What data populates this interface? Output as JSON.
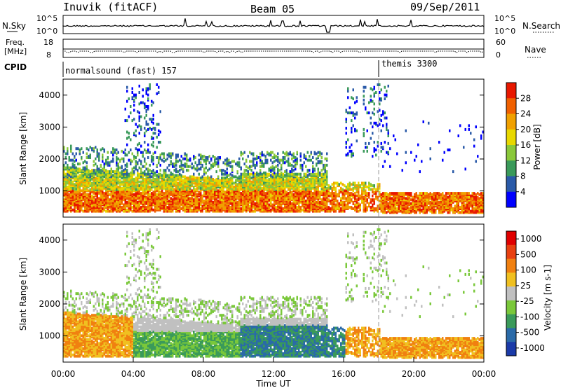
{
  "header": {
    "station": "Inuvik (fitACF)",
    "beam": "Beam 05",
    "date": "09/Sep/2011"
  },
  "sky_panel": {
    "left_label": "N.Sky",
    "right_label": "N.Search",
    "left_ticks": [
      "10^5",
      "10^0"
    ],
    "right_ticks": [
      "10^5",
      "10^0"
    ]
  },
  "freq_panel": {
    "left_label_line1": "Freq.",
    "left_label_line2": "[MHz]",
    "right_label": "Nave",
    "left_ticks": [
      "18",
      "8"
    ],
    "right_ticks": [
      "60",
      "0"
    ]
  },
  "cpid_panel": {
    "label": "CPID",
    "modes": [
      {
        "name": "normalsound (fast) 157",
        "start_hour": 0
      },
      {
        "name": "themis 3300",
        "start_hour": 18
      }
    ]
  },
  "chart_data": [
    {
      "type": "heatmap",
      "ylabel": "Slant Range [km]",
      "xlabel": "",
      "xlim_hours": [
        0,
        24
      ],
      "ylim": [
        180,
        4500
      ],
      "y_ticks": [
        "1000",
        "2000",
        "3000",
        "4000"
      ],
      "colorbar_label": "Power [dB]",
      "colorbar_ticks": [
        "4",
        "8",
        "12",
        "16",
        "20",
        "24",
        "28"
      ],
      "colorbar_colors": [
        "#0000ff",
        "#2a5aa8",
        "#3a9a5a",
        "#8ac83a",
        "#e8d800",
        "#f0a000",
        "#f06000",
        "#e81800"
      ]
    },
    {
      "type": "heatmap",
      "ylabel": "Slant Range [km]",
      "xlabel": "Time UT",
      "xlim_hours": [
        0,
        24
      ],
      "ylim": [
        180,
        4500
      ],
      "y_ticks": [
        "1000",
        "2000",
        "3000",
        "4000"
      ],
      "x_ticks": [
        "00:00",
        "04:00",
        "08:00",
        "12:00",
        "16:00",
        "20:00",
        "00:00"
      ],
      "colorbar_label": "Velocity [m s-1]",
      "colorbar_ticks": [
        "1000",
        "500",
        "100",
        "25",
        "-25",
        "-100",
        "-500",
        "-1000"
      ],
      "colorbar_colors": [
        "#1a3aa8",
        "#2a6aa8",
        "#3a9a5a",
        "#7ac83a",
        "#c0c0c0",
        "#f0c020",
        "#f08010",
        "#e84010",
        "#e00000"
      ]
    }
  ]
}
